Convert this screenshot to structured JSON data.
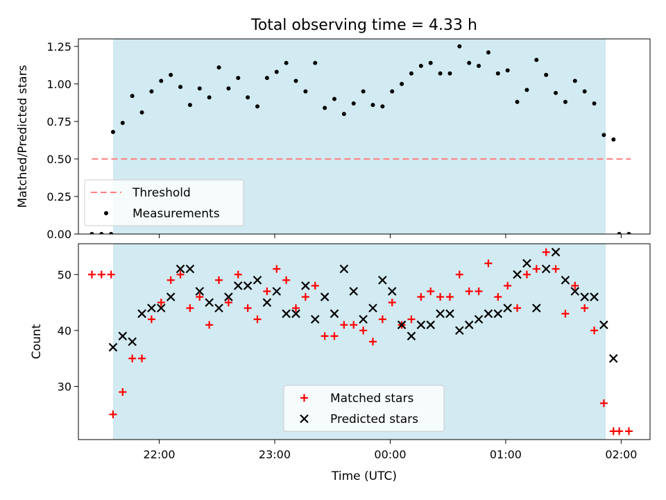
{
  "figure": {
    "title": "Total observing time = 4.33 h"
  },
  "colors": {
    "shade": "#add8e6",
    "threshold": "#ff7f7f",
    "measurement": "#000000",
    "matched": "#ff0000",
    "predicted": "#000000"
  },
  "chart_data": [
    {
      "type": "scatter",
      "ylabel": "Matched/Predicted stars",
      "xlabel": "",
      "ylim": [
        0,
        1.3
      ],
      "xlim": [
        "21:18",
        "02:15"
      ],
      "yticks": [
        "0.00",
        "0.25",
        "0.50",
        "0.75",
        "1.00",
        "1.25"
      ],
      "shaded_span": [
        "21:36",
        "01:52"
      ],
      "legend": {
        "placement": "lower-left",
        "entries": [
          "Threshold",
          "Measurements"
        ]
      },
      "threshold": {
        "name": "Threshold",
        "value": 0.5,
        "x_range": [
          "21:25",
          "02:05"
        ]
      },
      "series": [
        {
          "name": "Measurements",
          "points": [
            [
              "21:25",
              0.0
            ],
            [
              "21:30",
              0.0
            ],
            [
              "21:35",
              0.0
            ],
            [
              "21:36",
              0.68
            ],
            [
              "21:41",
              0.74
            ],
            [
              "21:46",
              0.92
            ],
            [
              "21:51",
              0.81
            ],
            [
              "21:56",
              0.95
            ],
            [
              "22:01",
              1.02
            ],
            [
              "22:06",
              1.06
            ],
            [
              "22:11",
              0.98
            ],
            [
              "22:16",
              0.86
            ],
            [
              "22:21",
              0.97
            ],
            [
              "22:26",
              0.91
            ],
            [
              "22:31",
              1.11
            ],
            [
              "22:36",
              0.97
            ],
            [
              "22:41",
              1.04
            ],
            [
              "22:46",
              0.91
            ],
            [
              "22:51",
              0.85
            ],
            [
              "22:56",
              1.04
            ],
            [
              "23:01",
              1.08
            ],
            [
              "23:06",
              1.14
            ],
            [
              "23:11",
              1.02
            ],
            [
              "23:16",
              0.95
            ],
            [
              "23:21",
              1.14
            ],
            [
              "23:26",
              0.84
            ],
            [
              "23:31",
              0.9
            ],
            [
              "23:36",
              0.8
            ],
            [
              "23:41",
              0.87
            ],
            [
              "23:46",
              0.95
            ],
            [
              "23:51",
              0.86
            ],
            [
              "23:56",
              0.85
            ],
            [
              "00:01",
              0.95
            ],
            [
              "00:06",
              1.0
            ],
            [
              "00:11",
              1.07
            ],
            [
              "00:16",
              1.12
            ],
            [
              "00:21",
              1.14
            ],
            [
              "00:26",
              1.07
            ],
            [
              "00:31",
              1.07
            ],
            [
              "00:36",
              1.25
            ],
            [
              "00:41",
              1.14
            ],
            [
              "00:46",
              1.12
            ],
            [
              "00:51",
              1.21
            ],
            [
              "00:56",
              1.07
            ],
            [
              "01:01",
              1.09
            ],
            [
              "01:06",
              0.88
            ],
            [
              "01:11",
              0.96
            ],
            [
              "01:16",
              1.16
            ],
            [
              "01:21",
              1.06
            ],
            [
              "01:26",
              0.94
            ],
            [
              "01:31",
              0.88
            ],
            [
              "01:36",
              1.02
            ],
            [
              "01:41",
              0.95
            ],
            [
              "01:46",
              0.87
            ],
            [
              "01:51",
              0.66
            ],
            [
              "01:56",
              0.63
            ],
            [
              "01:59",
              0.0
            ],
            [
              "02:04",
              0.0
            ]
          ]
        }
      ]
    },
    {
      "type": "scatter",
      "ylabel": "Count",
      "xlabel": "Time (UTC)",
      "ylim": [
        20.5,
        55.5
      ],
      "xlim": [
        "21:18",
        "02:15"
      ],
      "yticks": [
        "30",
        "40",
        "50"
      ],
      "xticks": [
        "22:00",
        "23:00",
        "00:00",
        "01:00",
        "02:00"
      ],
      "shaded_span": [
        "21:36",
        "01:52"
      ],
      "legend": {
        "placement": "lower-center",
        "entries": [
          "Matched stars",
          "Predicted stars"
        ]
      },
      "series": [
        {
          "name": "Matched stars",
          "marker": "plus",
          "points": [
            [
              "21:25",
              50
            ],
            [
              "21:30",
              50
            ],
            [
              "21:35",
              50
            ],
            [
              "21:36",
              25
            ],
            [
              "21:41",
              29
            ],
            [
              "21:46",
              35
            ],
            [
              "21:51",
              35
            ],
            [
              "21:56",
              42
            ],
            [
              "22:01",
              45
            ],
            [
              "22:06",
              49
            ],
            [
              "22:11",
              50
            ],
            [
              "22:16",
              44
            ],
            [
              "22:21",
              46
            ],
            [
              "22:26",
              41
            ],
            [
              "22:31",
              49
            ],
            [
              "22:36",
              45
            ],
            [
              "22:41",
              50
            ],
            [
              "22:46",
              44
            ],
            [
              "22:51",
              42
            ],
            [
              "22:56",
              47
            ],
            [
              "23:01",
              51
            ],
            [
              "23:06",
              49
            ],
            [
              "23:11",
              44
            ],
            [
              "23:16",
              46
            ],
            [
              "23:21",
              48
            ],
            [
              "23:26",
              39
            ],
            [
              "23:31",
              39
            ],
            [
              "23:36",
              41
            ],
            [
              "23:41",
              41
            ],
            [
              "23:46",
              40
            ],
            [
              "23:51",
              38
            ],
            [
              "23:56",
              42
            ],
            [
              "00:01",
              45
            ],
            [
              "00:06",
              41
            ],
            [
              "00:11",
              42
            ],
            [
              "00:16",
              46
            ],
            [
              "00:21",
              47
            ],
            [
              "00:26",
              46
            ],
            [
              "00:31",
              46
            ],
            [
              "00:36",
              50
            ],
            [
              "00:41",
              47
            ],
            [
              "00:46",
              47
            ],
            [
              "00:51",
              52
            ],
            [
              "00:56",
              46
            ],
            [
              "01:01",
              48
            ],
            [
              "01:06",
              44
            ],
            [
              "01:11",
              50
            ],
            [
              "01:16",
              51
            ],
            [
              "01:21",
              54
            ],
            [
              "01:26",
              51
            ],
            [
              "01:31",
              43
            ],
            [
              "01:36",
              48
            ],
            [
              "01:41",
              44
            ],
            [
              "01:46",
              40
            ],
            [
              "01:51",
              27
            ],
            [
              "01:56",
              22
            ],
            [
              "01:59",
              22
            ],
            [
              "02:04",
              22
            ]
          ]
        },
        {
          "name": "Predicted stars",
          "marker": "cross",
          "points": [
            [
              "21:36",
              37
            ],
            [
              "21:41",
              39
            ],
            [
              "21:46",
              38
            ],
            [
              "21:51",
              43
            ],
            [
              "21:56",
              44
            ],
            [
              "22:01",
              44
            ],
            [
              "22:06",
              46
            ],
            [
              "22:11",
              51
            ],
            [
              "22:16",
              51
            ],
            [
              "22:21",
              47
            ],
            [
              "22:26",
              45
            ],
            [
              "22:31",
              44
            ],
            [
              "22:36",
              46
            ],
            [
              "22:41",
              48
            ],
            [
              "22:46",
              48
            ],
            [
              "22:51",
              49
            ],
            [
              "22:56",
              45
            ],
            [
              "23:01",
              47
            ],
            [
              "23:06",
              43
            ],
            [
              "23:11",
              43
            ],
            [
              "23:16",
              48
            ],
            [
              "23:21",
              42
            ],
            [
              "23:26",
              46
            ],
            [
              "23:31",
              43
            ],
            [
              "23:36",
              51
            ],
            [
              "23:41",
              47
            ],
            [
              "23:46",
              42
            ],
            [
              "23:51",
              44
            ],
            [
              "23:56",
              49
            ],
            [
              "00:01",
              47
            ],
            [
              "00:06",
              41
            ],
            [
              "00:11",
              39
            ],
            [
              "00:16",
              41
            ],
            [
              "00:21",
              41
            ],
            [
              "00:26",
              43
            ],
            [
              "00:31",
              43
            ],
            [
              "00:36",
              40
            ],
            [
              "00:41",
              41
            ],
            [
              "00:46",
              42
            ],
            [
              "00:51",
              43
            ],
            [
              "00:56",
              43
            ],
            [
              "01:01",
              44
            ],
            [
              "01:06",
              50
            ],
            [
              "01:11",
              52
            ],
            [
              "01:16",
              44
            ],
            [
              "01:21",
              51
            ],
            [
              "01:26",
              54
            ],
            [
              "01:31",
              49
            ],
            [
              "01:36",
              47
            ],
            [
              "01:41",
              46
            ],
            [
              "01:46",
              46
            ],
            [
              "01:51",
              41
            ],
            [
              "01:56",
              35
            ]
          ]
        }
      ]
    }
  ]
}
